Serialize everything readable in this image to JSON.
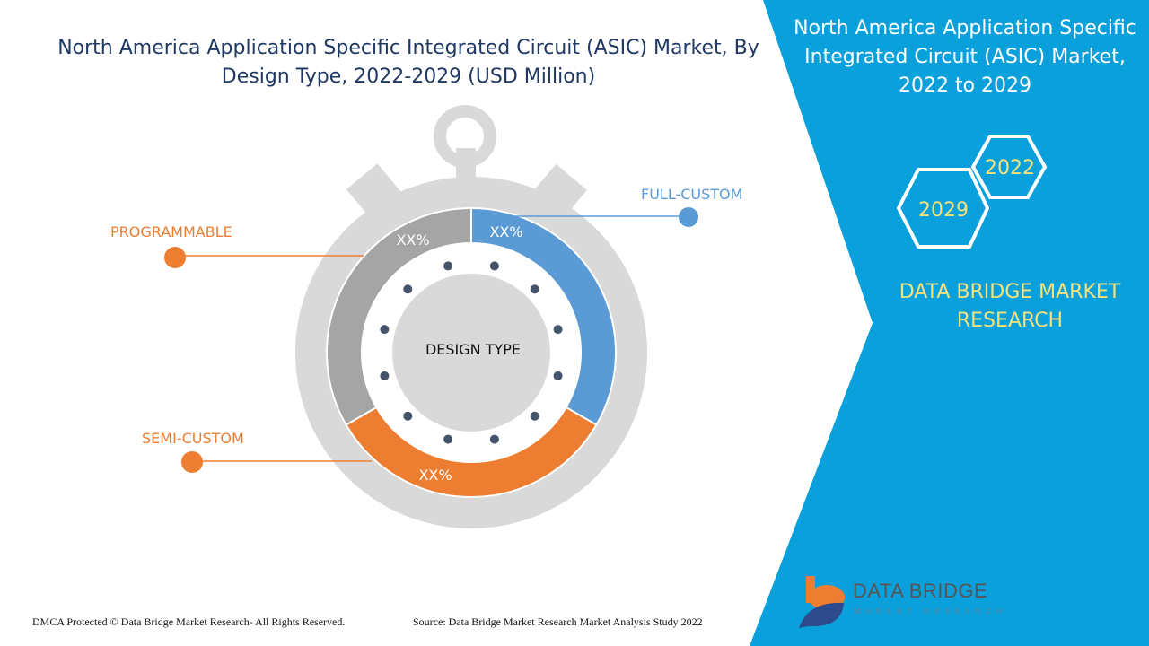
{
  "title": "North America Application Specific Integrated Circuit (ASIC) Market, By Design Type, 2022-2029 (USD Million)",
  "panel": {
    "title": "North America Application Specific Integrated Circuit (ASIC) Market, 2022 to 2029",
    "year_start": "2022",
    "year_end": "2029",
    "brand": "DATA BRIDGE MARKET RESEARCH",
    "background_color": "#0aa0dc"
  },
  "chart_data": {
    "type": "pie",
    "center_label": "DESIGN TYPE",
    "categories": [
      "FULL-CUSTOM",
      "SEMI-CUSTOM",
      "PROGRAMMABLE"
    ],
    "value_labels": [
      "XX%",
      "XX%",
      "XX%"
    ],
    "colors": [
      "#5b9bd5",
      "#ed7d31",
      "#a5a5a5"
    ],
    "label_colors": [
      "#5b9bd5",
      "#ed7d31",
      "#ed7d31"
    ]
  },
  "footer": {
    "copyright": "DMCA Protected © Data Bridge Market Research- All Rights Reserved.",
    "source": "Source: Data Bridge Market Research Market Analysis Study 2022"
  },
  "logo": {
    "name": "DATA BRIDGE",
    "sub": "MARKET RESEARCH"
  }
}
